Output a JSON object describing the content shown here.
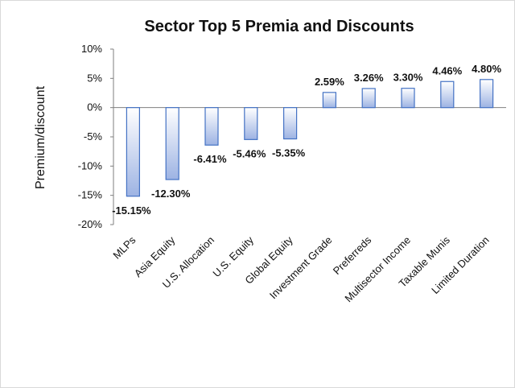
{
  "chart_data": {
    "type": "bar",
    "title": "Sector Top 5 Premia and Discounts",
    "xlabel": "",
    "ylabel": "Premium/discount",
    "ylim": [
      -20,
      10
    ],
    "yticks": [
      10,
      5,
      0,
      -5,
      -10,
      -15,
      -20
    ],
    "ytick_labels": [
      "10%",
      "5%",
      "0%",
      "-5%",
      "-10%",
      "-15%",
      "-20%"
    ],
    "categories": [
      "MLPs",
      "Asia Equity",
      "U.S. Allocation",
      "U.S. Equity",
      "Global Equity",
      "Investment Grade",
      "Preferreds",
      "Multisector Income",
      "Taxable Munis",
      "Limited Duration"
    ],
    "values": [
      -15.15,
      -12.3,
      -6.41,
      -5.46,
      -5.35,
      2.59,
      3.26,
      3.3,
      4.46,
      4.8
    ],
    "data_labels": [
      "-15.15%",
      "-12.30%",
      "-6.41%",
      "-5.46%",
      "-5.35%",
      "2.59%",
      "3.26%",
      "3.30%",
      "4.46%",
      "4.80%"
    ],
    "grid": false,
    "legend": "none",
    "colors": {
      "bar_top": "#ffffff",
      "bar_bottom": "#9db3e3",
      "bar_stroke": "#4472c4"
    }
  }
}
